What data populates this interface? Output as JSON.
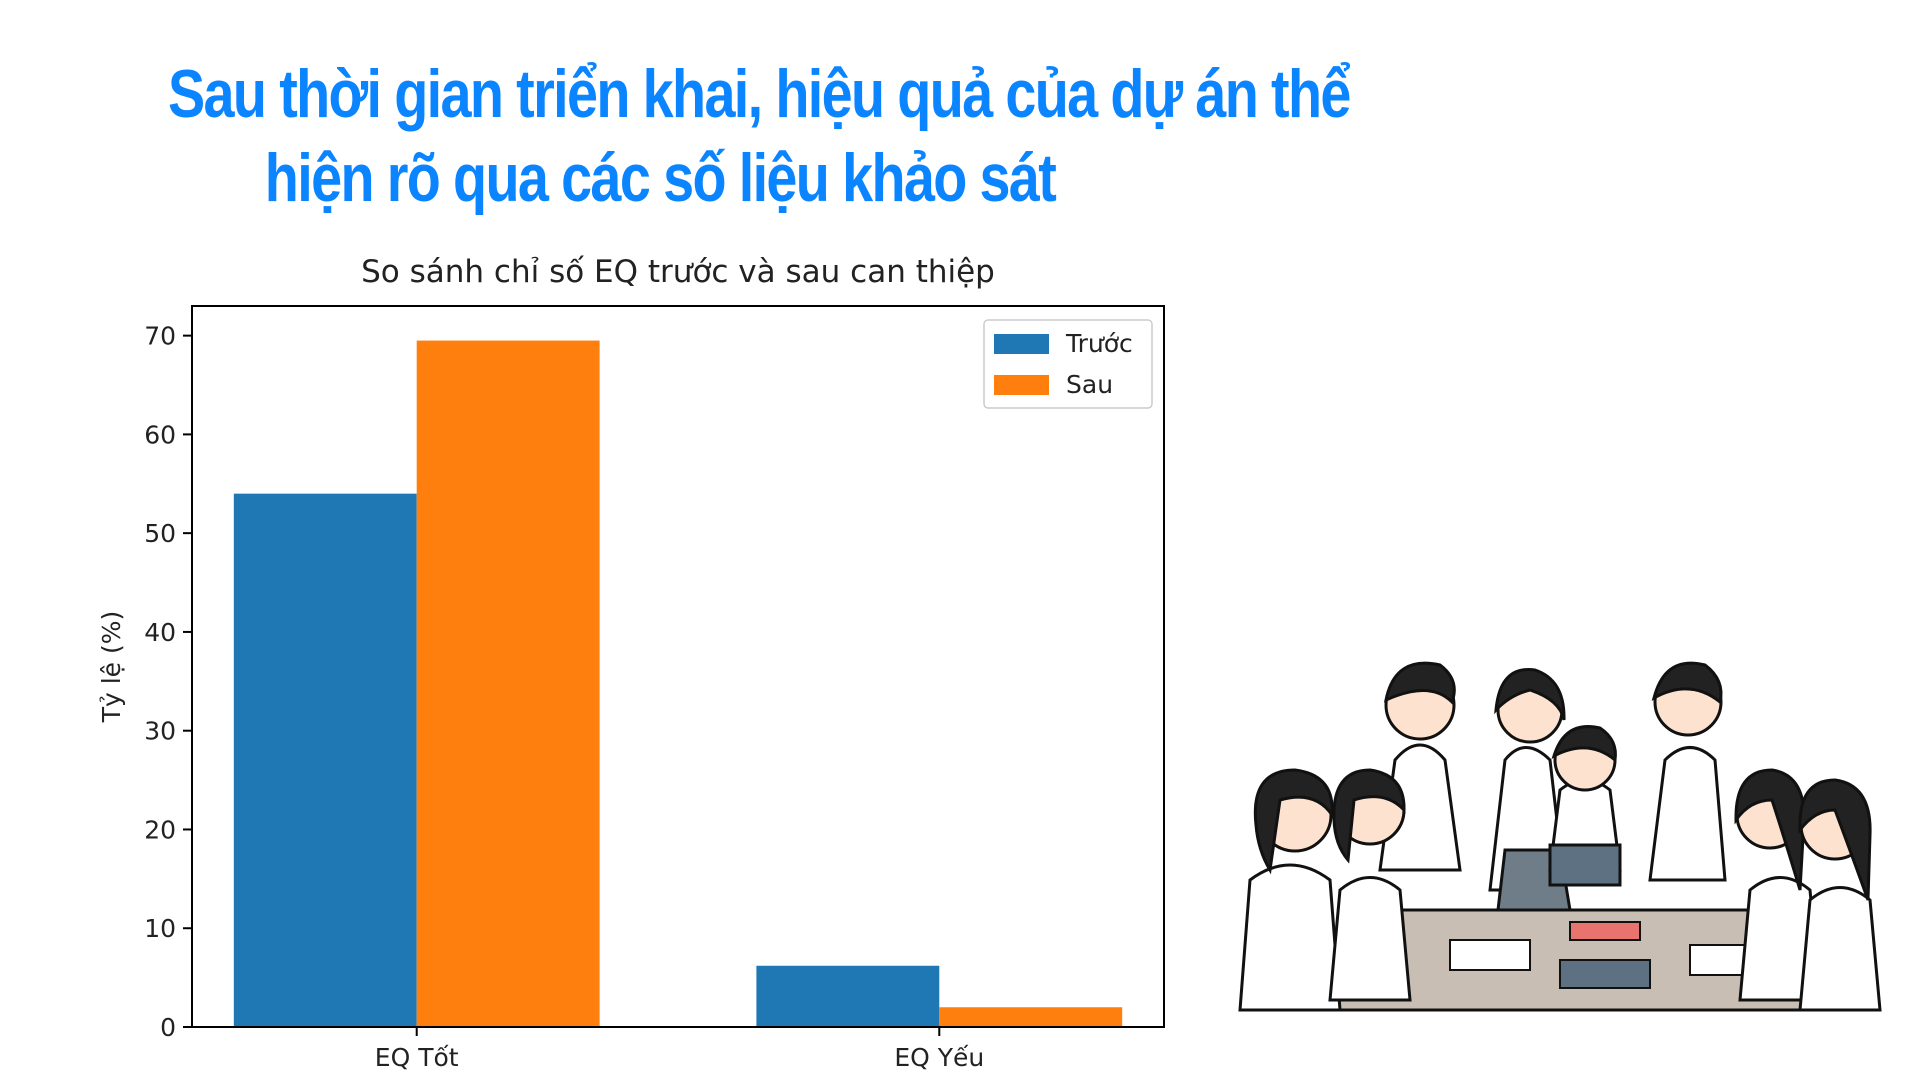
{
  "headline": {
    "line1": "Sau thời gian triển khai, hiệu quả của dự án thể",
    "line2": "hiện rõ qua các số liệu khảo sát"
  },
  "colors": {
    "headline": "#0a84ff",
    "truoc": "#1f77b4",
    "sau": "#ff7f0e"
  },
  "chart_data": {
    "type": "bar",
    "title": "So sánh chỉ số EQ trước và sau can thiệp",
    "xlabel": "",
    "ylabel": "Tỷ lệ (%)",
    "categories": [
      "EQ Tốt",
      "EQ Yếu"
    ],
    "series": [
      {
        "name": "Trước",
        "values": [
          54,
          6.2
        ]
      },
      {
        "name": "Sau",
        "values": [
          69.5,
          2
        ]
      }
    ],
    "ylim": [
      0,
      73
    ],
    "yticks": [
      0,
      10,
      20,
      30,
      40,
      50,
      60,
      70
    ],
    "grid": false,
    "legend": "top-right"
  },
  "illustration": {
    "icon": "students-studying-illustration"
  }
}
